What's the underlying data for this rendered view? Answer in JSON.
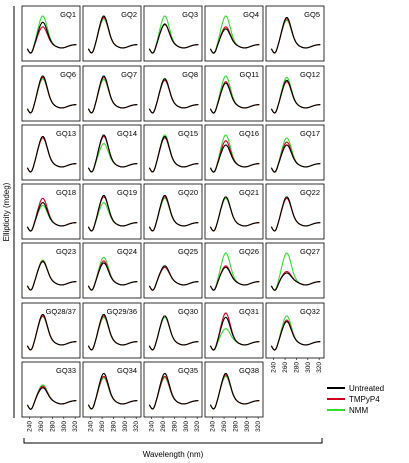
{
  "chart_data": {
    "type": "line",
    "layout": "small-multiples grid, 5 columns x 7 rows",
    "ylabel": "Ellipticity (mdeg)",
    "xlabel": "Wavelength (nm)",
    "x_ticks": [
      "240",
      "260",
      "280",
      "300",
      "320"
    ],
    "xlim": [
      230,
      325
    ],
    "y_ticks_shown": false,
    "legend": {
      "placement": "bottom-right cell",
      "entries": [
        {
          "name": "Untreated",
          "color": "#000000"
        },
        {
          "name": "TMPyP4",
          "color": "#d0021b"
        },
        {
          "name": "NMM",
          "color": "#33dd33"
        }
      ]
    },
    "panels": [
      {
        "label": "GQ1",
        "peak": [
          0.78,
          0.62,
          1.0
        ]
      },
      {
        "label": "GQ2",
        "peak": [
          1.0,
          0.95,
          0.9
        ]
      },
      {
        "label": "GQ3",
        "peak": [
          0.72,
          0.7,
          1.0
        ]
      },
      {
        "label": "GQ4",
        "peak": [
          0.55,
          0.62,
          1.0
        ]
      },
      {
        "label": "GQ5",
        "peak": [
          0.95,
          0.9,
          0.85
        ]
      },
      {
        "label": "GQ6",
        "peak": [
          1.0,
          0.95,
          0.9
        ]
      },
      {
        "label": "GQ7",
        "peak": [
          1.0,
          0.95,
          0.88
        ]
      },
      {
        "label": "GQ8",
        "peak": [
          0.9,
          0.85,
          0.92
        ]
      },
      {
        "label": "GQ11",
        "peak": [
          0.75,
          0.8,
          1.0
        ]
      },
      {
        "label": "GQ12",
        "peak": [
          0.85,
          0.8,
          0.95
        ]
      },
      {
        "label": "GQ13",
        "peak": [
          0.95,
          0.9,
          0.9
        ]
      },
      {
        "label": "GQ14",
        "peak": [
          1.0,
          0.95,
          0.7
        ]
      },
      {
        "label": "GQ15",
        "peak": [
          0.95,
          0.9,
          1.0
        ]
      },
      {
        "label": "GQ16",
        "peak": [
          0.65,
          0.8,
          1.0
        ]
      },
      {
        "label": "GQ17",
        "peak": [
          0.65,
          0.75,
          0.9
        ]
      },
      {
        "label": "GQ18",
        "peak": [
          0.7,
          0.85,
          0.6
        ]
      },
      {
        "label": "GQ19",
        "peak": [
          0.95,
          0.9,
          0.7
        ]
      },
      {
        "label": "GQ20",
        "peak": [
          0.95,
          0.9,
          0.85
        ]
      },
      {
        "label": "GQ21",
        "peak": [
          0.9,
          0.9,
          0.85
        ]
      },
      {
        "label": "GQ22",
        "peak": [
          0.9,
          0.85,
          0.9
        ]
      },
      {
        "label": "GQ23",
        "peak": [
          0.7,
          0.72,
          0.75
        ]
      },
      {
        "label": "GQ24",
        "peak": [
          0.65,
          0.72,
          0.85
        ]
      },
      {
        "label": "GQ25",
        "peak": [
          0.55,
          0.5,
          0.5
        ]
      },
      {
        "label": "GQ26",
        "peak": [
          0.5,
          0.55,
          1.0
        ]
      },
      {
        "label": "GQ27",
        "peak": [
          0.3,
          0.35,
          1.0
        ]
      },
      {
        "label": "GQ28/37",
        "peak": [
          0.95,
          0.9,
          0.88
        ]
      },
      {
        "label": "GQ29/36",
        "peak": [
          0.95,
          0.9,
          0.85
        ]
      },
      {
        "label": "GQ30",
        "peak": [
          0.9,
          0.9,
          0.85
        ]
      },
      {
        "label": "GQ31",
        "peak": [
          0.85,
          1.0,
          0.45
        ]
      },
      {
        "label": "GQ32",
        "peak": [
          0.7,
          0.75,
          0.9
        ]
      },
      {
        "label": "GQ33",
        "peak": [
          0.45,
          0.5,
          0.55
        ]
      },
      {
        "label": "GQ34",
        "peak": [
          0.95,
          0.85,
          0.8
        ]
      },
      {
        "label": "GQ35",
        "peak": [
          0.95,
          0.85,
          0.8
        ]
      },
      {
        "label": "GQ38",
        "peak": [
          0.95,
          0.9,
          0.85
        ]
      }
    ]
  }
}
